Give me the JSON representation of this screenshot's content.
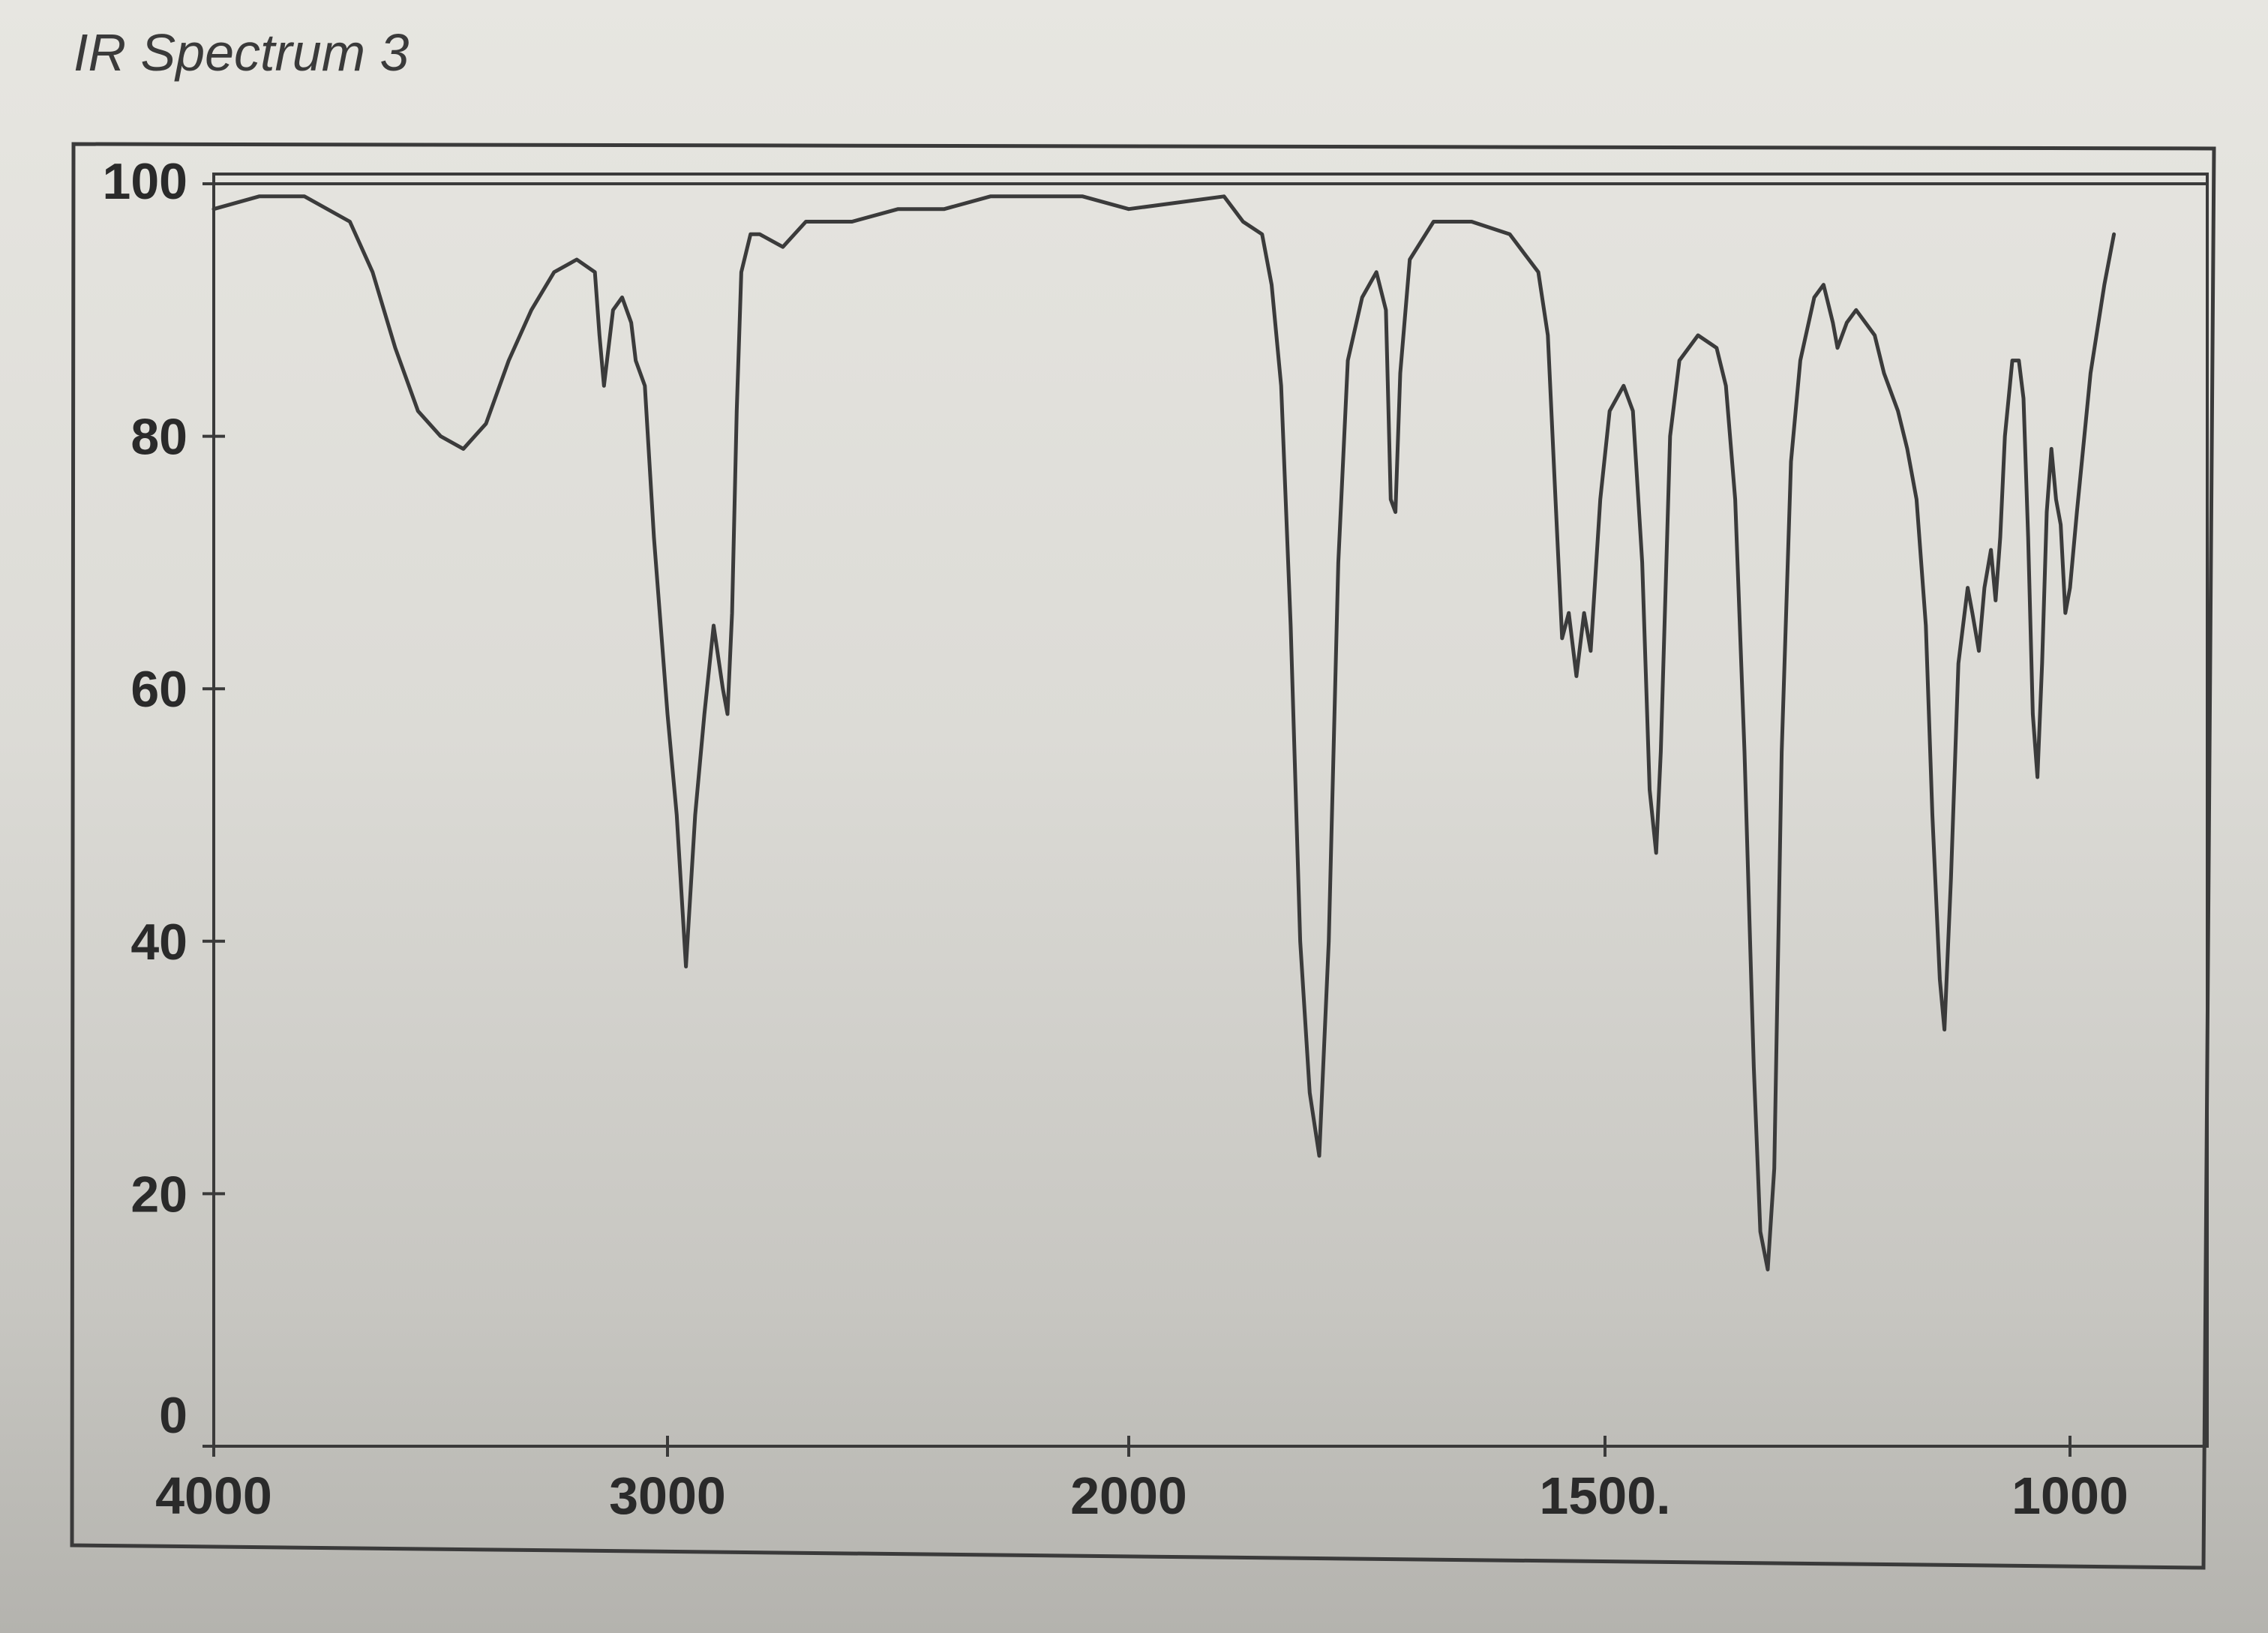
{
  "caption": "IR Spectrum 3",
  "chart_data": {
    "type": "line",
    "title": "",
    "xlabel": "",
    "ylabel": "",
    "xlim": [
      4000,
      900
    ],
    "ylim": [
      0,
      100
    ],
    "x_ticks": [
      4000,
      3000,
      2000,
      1500,
      1000
    ],
    "x_tick_labels": [
      "4000",
      "3000",
      "2000",
      "1500.",
      "1000"
    ],
    "y_ticks": [
      0,
      20,
      40,
      60,
      80,
      100
    ],
    "y_tick_labels": [
      "0",
      "20",
      "40",
      "60",
      "80",
      "100"
    ],
    "grid": false,
    "line_color": "#3b3b3b",
    "series": [
      {
        "points": [
          [
            4000,
            98
          ],
          [
            3900,
            99
          ],
          [
            3800,
            99
          ],
          [
            3700,
            97
          ],
          [
            3650,
            93
          ],
          [
            3600,
            87
          ],
          [
            3550,
            82
          ],
          [
            3500,
            80
          ],
          [
            3450,
            79
          ],
          [
            3400,
            81
          ],
          [
            3350,
            86
          ],
          [
            3300,
            90
          ],
          [
            3250,
            93
          ],
          [
            3200,
            94
          ],
          [
            3160,
            93
          ],
          [
            3150,
            88
          ],
          [
            3140,
            84
          ],
          [
            3120,
            90
          ],
          [
            3100,
            91
          ],
          [
            3080,
            89
          ],
          [
            3070,
            86
          ],
          [
            3050,
            84
          ],
          [
            3030,
            72
          ],
          [
            3000,
            58
          ],
          [
            2980,
            50
          ],
          [
            2960,
            38
          ],
          [
            2940,
            50
          ],
          [
            2920,
            58
          ],
          [
            2900,
            65
          ],
          [
            2880,
            60
          ],
          [
            2870,
            58
          ],
          [
            2860,
            66
          ],
          [
            2850,
            82
          ],
          [
            2840,
            93
          ],
          [
            2820,
            96
          ],
          [
            2800,
            96
          ],
          [
            2750,
            95
          ],
          [
            2700,
            97
          ],
          [
            2600,
            97
          ],
          [
            2500,
            98
          ],
          [
            2400,
            98
          ],
          [
            2300,
            99
          ],
          [
            2200,
            99
          ],
          [
            2100,
            99
          ],
          [
            2000,
            98
          ],
          [
            1900,
            99
          ],
          [
            1880,
            97
          ],
          [
            1860,
            96
          ],
          [
            1850,
            92
          ],
          [
            1840,
            84
          ],
          [
            1830,
            65
          ],
          [
            1820,
            40
          ],
          [
            1810,
            28
          ],
          [
            1800,
            23
          ],
          [
            1790,
            40
          ],
          [
            1780,
            70
          ],
          [
            1770,
            86
          ],
          [
            1755,
            91
          ],
          [
            1740,
            93
          ],
          [
            1730,
            90
          ],
          [
            1725,
            75
          ],
          [
            1720,
            74
          ],
          [
            1715,
            85
          ],
          [
            1705,
            94
          ],
          [
            1680,
            97
          ],
          [
            1640,
            97
          ],
          [
            1600,
            96
          ],
          [
            1570,
            93
          ],
          [
            1560,
            88
          ],
          [
            1552,
            75
          ],
          [
            1545,
            64
          ],
          [
            1538,
            66
          ],
          [
            1530,
            61
          ],
          [
            1522,
            66
          ],
          [
            1515,
            63
          ],
          [
            1505,
            75
          ],
          [
            1495,
            82
          ],
          [
            1480,
            84
          ],
          [
            1470,
            82
          ],
          [
            1460,
            70
          ],
          [
            1452,
            52
          ],
          [
            1445,
            47
          ],
          [
            1440,
            55
          ],
          [
            1430,
            80
          ],
          [
            1420,
            86
          ],
          [
            1400,
            88
          ],
          [
            1380,
            87
          ],
          [
            1370,
            84
          ],
          [
            1360,
            75
          ],
          [
            1350,
            55
          ],
          [
            1340,
            30
          ],
          [
            1333,
            17
          ],
          [
            1325,
            14
          ],
          [
            1318,
            22
          ],
          [
            1310,
            55
          ],
          [
            1300,
            78
          ],
          [
            1290,
            86
          ],
          [
            1275,
            91
          ],
          [
            1265,
            92
          ],
          [
            1255,
            89
          ],
          [
            1250,
            87
          ],
          [
            1240,
            89
          ],
          [
            1230,
            90
          ],
          [
            1220,
            89
          ],
          [
            1210,
            88
          ],
          [
            1200,
            85
          ],
          [
            1190,
            83
          ],
          [
            1185,
            82
          ],
          [
            1175,
            79
          ],
          [
            1165,
            75
          ],
          [
            1155,
            65
          ],
          [
            1148,
            50
          ],
          [
            1140,
            37
          ],
          [
            1135,
            33
          ],
          [
            1128,
            45
          ],
          [
            1120,
            62
          ],
          [
            1110,
            68
          ],
          [
            1105,
            66
          ],
          [
            1098,
            63
          ],
          [
            1092,
            68
          ],
          [
            1085,
            71
          ],
          [
            1080,
            67
          ],
          [
            1075,
            72
          ],
          [
            1070,
            80
          ],
          [
            1062,
            86
          ],
          [
            1055,
            86
          ],
          [
            1050,
            83
          ],
          [
            1045,
            72
          ],
          [
            1040,
            58
          ],
          [
            1035,
            53
          ],
          [
            1030,
            62
          ],
          [
            1025,
            74
          ],
          [
            1020,
            79
          ],
          [
            1015,
            75
          ],
          [
            1010,
            73
          ],
          [
            1005,
            66
          ],
          [
            1000,
            68
          ],
          [
            995,
            74
          ],
          [
            985,
            85
          ],
          [
            975,
            92
          ],
          [
            968,
            96
          ]
        ]
      }
    ]
  }
}
